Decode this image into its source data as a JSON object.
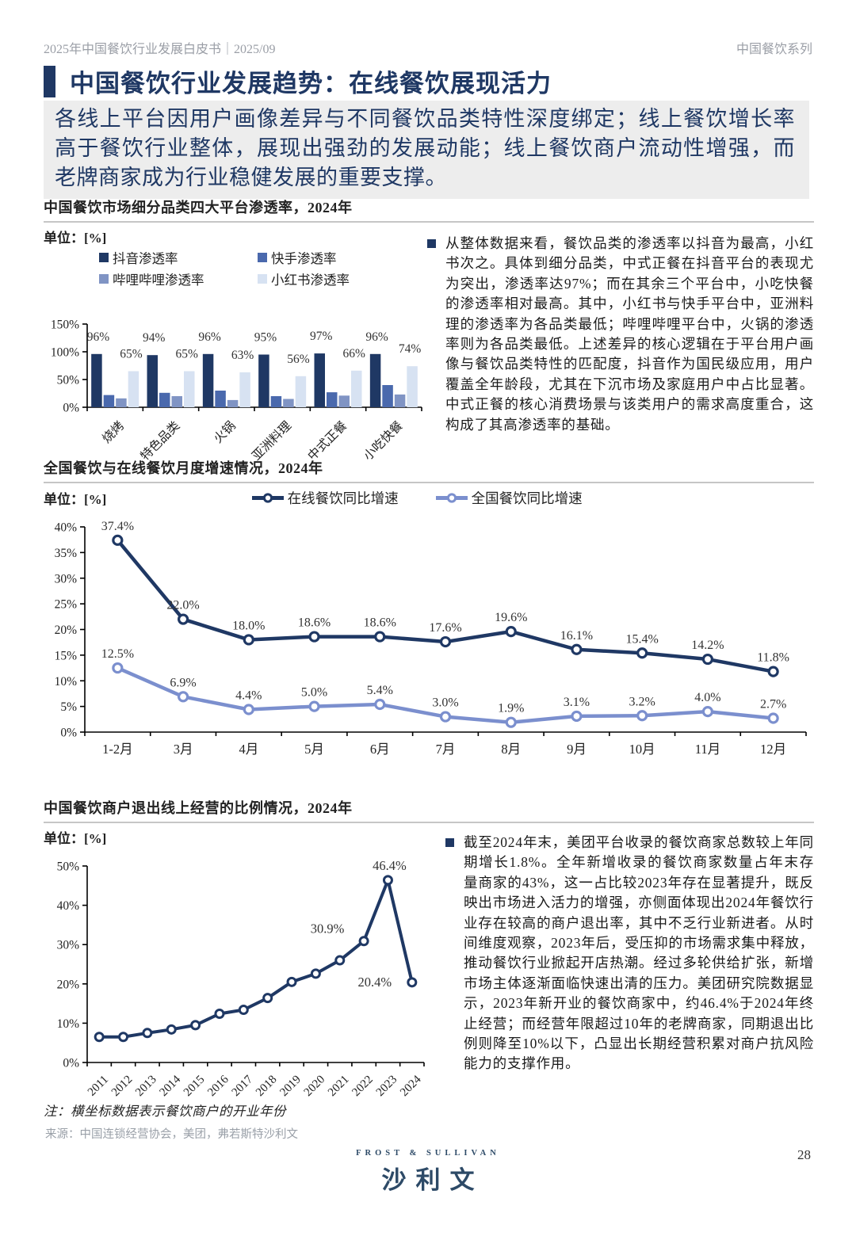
{
  "header": {
    "left": "2025年中国餐饮行业发展白皮书｜2025/09",
    "right": "中国餐饮系列"
  },
  "title_block": {
    "text": "中国餐饮行业发展趋势：在线餐饮展现活力"
  },
  "summary": {
    "text": "各线上平台因用户画像差异与不同餐饮品类特性深度绑定；线上餐饮增长率高于餐饮行业整体，展现出强劲的发展动能；线上餐饮商户流动性增强，而老牌商家成为行业稳健发展的重要支撑。"
  },
  "colors": {
    "navy": "#1F3864",
    "kuaishou_blue": "#4A69AD",
    "bilibili_blue": "#8094C4",
    "xiaohongshu_blue": "#D7E2F2",
    "national_line_blue": "#7B8FCE",
    "rule_gray": "#C6C6C6",
    "summary_bg": "#EDEDED"
  },
  "chart_data": [
    {
      "id": "platform-penetration",
      "type": "bar",
      "title": "中国餐饮市场细分品类四大平台渗透率，2024年",
      "unit": "单位：[%]",
      "categories": [
        "烧烤",
        "特色品类",
        "火锅",
        "亚洲料理",
        "中式正餐",
        "小吃快餐"
      ],
      "series": [
        {
          "name": "抖音渗透率",
          "color": "#1F3864",
          "values": [
            96,
            94,
            96,
            95,
            97,
            96
          ],
          "show_labels": true
        },
        {
          "name": "快手渗透率",
          "color": "#4A69AD",
          "values": [
            22,
            26,
            30,
            20,
            27,
            40
          ],
          "show_labels": false
        },
        {
          "name": "哔哩哔哩渗透率",
          "color": "#8094C4",
          "values": [
            16,
            20,
            13,
            15,
            21,
            23
          ],
          "show_labels": false
        },
        {
          "name": "小红书渗透率",
          "color": "#D7E2F2",
          "values": [
            65,
            65,
            63,
            56,
            66,
            74
          ],
          "show_labels": true
        }
      ],
      "ylim": [
        0,
        150
      ],
      "ystep": 50,
      "grid": false,
      "legend_position": "top"
    },
    {
      "id": "monthly-growth",
      "type": "line",
      "title": "全国餐饮与在线餐饮月度增速情况，2024年",
      "unit": "单位：[%]",
      "x": [
        "1-2月",
        "3月",
        "4月",
        "5月",
        "6月",
        "7月",
        "8月",
        "9月",
        "10月",
        "11月",
        "12月"
      ],
      "series": [
        {
          "name": "在线餐饮同比增速",
          "color": "#1F3864",
          "values": [
            37.4,
            22.0,
            18.0,
            18.6,
            18.6,
            17.6,
            19.6,
            16.1,
            15.4,
            14.2,
            11.8
          ]
        },
        {
          "name": "全国餐饮同比增速",
          "color": "#7B8FCE",
          "values": [
            12.5,
            6.9,
            4.4,
            5.0,
            5.4,
            3.0,
            1.9,
            3.1,
            3.2,
            4.0,
            2.7
          ]
        }
      ],
      "ylim": [
        0,
        40
      ],
      "ystep": 5,
      "grid": false,
      "label_all_points": true,
      "legend_position": "top"
    },
    {
      "id": "merchant-exit-ratio",
      "type": "line",
      "title": "中国餐饮商户退出线上经营的比例情况，2024年",
      "unit": "单位：[%]",
      "x": [
        "2011",
        "2012",
        "2013",
        "2014",
        "2015",
        "2016",
        "2017",
        "2018",
        "2019",
        "2020",
        "2021",
        "2022",
        "2023",
        "2024"
      ],
      "series": [
        {
          "name": "退出线上经营比例",
          "color": "#1F3864",
          "values": [
            6.5,
            6.5,
            7.5,
            8.4,
            9.5,
            12.4,
            13.4,
            16.4,
            20.5,
            22.6,
            26.0,
            30.9,
            46.4,
            20.4
          ],
          "point_labels": [
            {
              "i": 11,
              "text": "30.9%",
              "dx": -46,
              "dy": -10
            },
            {
              "i": 12,
              "text": "46.4%",
              "dx": 2,
              "dy": -13
            },
            {
              "i": 13,
              "text": "20.4%",
              "dx": -47,
              "dy": 5
            }
          ]
        }
      ],
      "ylim": [
        0,
        50
      ],
      "ystep": 10,
      "grid": false,
      "rotate_x_labels": true
    }
  ],
  "bullets": [
    {
      "text": "从整体数据来看，餐饮品类的渗透率以抖音为最高，小红书次之。具体到细分品类，中式正餐在抖音平台的表现尤为突出，渗透率达97%；而在其余三个平台中，小吃快餐的渗透率相对最高。其中，小红书与快手平台中，亚洲料理的渗透率为各品类最低；哔哩哔哩平台中，火锅的渗透率则为各品类最低。上述差异的核心逻辑在于平台用户画像与餐饮品类特性的匹配度，抖音作为国民级应用，用户覆盖全年龄段，尤其在下沉市场及家庭用户中占比显著。中式正餐的核心消费场景与该类用户的需求高度重合，这构成了其高渗透率的基础。"
    },
    {
      "text": "截至2024年末，美团平台收录的餐饮商家总数较上年同期增长1.8%。全年新增收录的餐饮商家数量占年末存量商家的43%，这一占比较2023年存在显著提升，既反映出市场进入活力的增强，亦侧面体现出2024年餐饮行业存在较高的商户退出率，其中不乏行业新进者。从时间维度观察，2023年后，受压抑的市场需求集中释放，推动餐饮行业掀起开店热潮。经过多轮供给扩张，新增市场主体逐渐面临快速出清的压力。美团研究院数据显示，2023年新开业的餐饮商家中，约46.4%于2024年终止经营；而经营年限超过10年的老牌商家，同期退出比例则降至10%以下，凸显出长期经营积累对商户抗风险能力的支撑作用。"
    }
  ],
  "note": {
    "text": "注：横坐标数据表示餐饮商户的开业年份"
  },
  "source": {
    "text": "来源：中国连锁经营协会，美团，弗若斯特沙利文"
  },
  "footer": {
    "logo_top": "FROST & SULLIVAN",
    "logo_main": "沙利文",
    "page_number": "28"
  }
}
